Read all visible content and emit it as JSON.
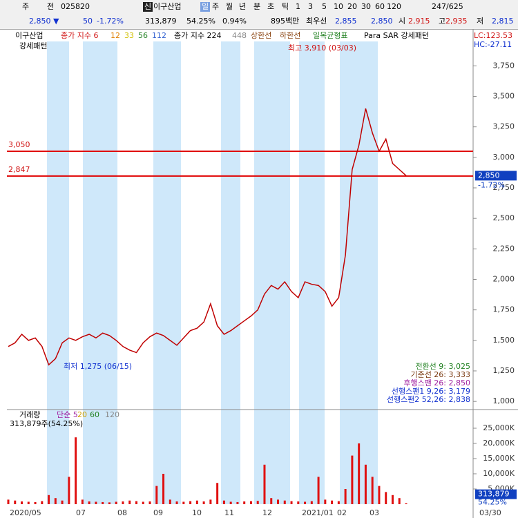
{
  "toolbar": [
    "주",
    "전",
    "025820",
    "신",
    "이구산업",
    "일",
    "주",
    "월",
    "년",
    "분",
    "초",
    "틱",
    "1",
    "3",
    "5",
    "10",
    "20",
    "30",
    "60",
    "120",
    "247/625"
  ],
  "quote": [
    "2,850 ▼",
    "50",
    "-1.72%",
    "313,879",
    "54.25%",
    "0.94%",
    "895백만",
    "최우선",
    "2,855",
    "2,850",
    "시",
    "2,915",
    "고",
    "2,935",
    "저",
    "2,815"
  ],
  "legend": [
    "이구산업",
    "종가 지수 6",
    "12",
    "33",
    "56",
    "112",
    "종가 지수 224",
    "448",
    "상한선",
    "하한선",
    "일목균형표",
    "Para SAR 강세패턴",
    "LC:123.53",
    "HC:-27.11",
    "강세패턴"
  ],
  "dates": [
    "2020/05",
    "07",
    "08",
    "09",
    "10",
    "11",
    "12",
    "2021/01",
    "02",
    "03",
    "03/30"
  ],
  "chart_data": [
    {
      "type": "line",
      "series": [
        {
          "name": "이구산업",
          "color": "#c00000",
          "values": [
            1450,
            1480,
            1550,
            1500,
            1520,
            1450,
            1300,
            1350,
            1480,
            1520,
            1500,
            1530,
            1550,
            1520,
            1560,
            1540,
            1500,
            1450,
            1420,
            1400,
            1480,
            1530,
            1560,
            1540,
            1500,
            1460,
            1520,
            1580,
            1600,
            1650,
            1800,
            1620,
            1550,
            1580,
            1620,
            1660,
            1700,
            1750,
            1880,
            1950,
            1920,
            1980,
            1900,
            1850,
            1980,
            1960,
            1950,
            1900,
            1780,
            1850,
            2200,
            2900,
            3100,
            3400,
            3200,
            3050,
            3150,
            2950,
            2900,
            2850
          ]
        }
      ],
      "ylim": [
        950,
        3950
      ],
      "yticks": [
        {
          "value": 1000,
          "label": "1,000"
        },
        {
          "value": 1250,
          "label": "1,250"
        },
        {
          "value": 1500,
          "label": "1,500"
        },
        {
          "value": 1750,
          "label": "1,750"
        },
        {
          "value": 2000,
          "label": "2,000"
        },
        {
          "value": 2250,
          "label": "2,250"
        },
        {
          "value": 2500,
          "label": "2,500"
        },
        {
          "value": 2750,
          "label": "2,750"
        },
        {
          "value": 3000,
          "label": "3,000"
        },
        {
          "value": 3250,
          "label": "3,250"
        },
        {
          "value": 3500,
          "label": "3,500"
        },
        {
          "value": 3750,
          "label": "3,750"
        }
      ],
      "reference_lines": [
        {
          "value": 3050,
          "label": "3,050"
        },
        {
          "value": 2847,
          "label": "2,847"
        }
      ],
      "current": {
        "value": 2850,
        "label": "2,850"
      },
      "change_label": "-1.72%",
      "annotations": [
        "최고 3,910 (03/03)",
        "최저 1,275 (06/15)"
      ],
      "readouts": [
        "전환선 9: 3,025",
        "기준선 26: 3,333",
        "후행스팬 26: 2,850",
        "선행스팬1 9,26: 3,179",
        "선행스팬2 52,26: 2,838"
      ]
    },
    {
      "type": "bar",
      "series": [
        {
          "name": "거래량",
          "color": "#e01010",
          "values": [
            1500,
            1200,
            900,
            800,
            700,
            1000,
            3000,
            2000,
            1200,
            9000,
            22000,
            1500,
            900,
            800,
            700,
            600,
            800,
            900,
            1200,
            1000,
            800,
            900,
            6000,
            10000,
            1500,
            900,
            800,
            1000,
            1200,
            900,
            1500,
            7000,
            1200,
            800,
            700,
            900,
            1000,
            1100,
            13000,
            2000,
            1500,
            1200,
            1000,
            900,
            800,
            1000,
            9000,
            1500,
            1200,
            1000,
            5000,
            16000,
            20000,
            13000,
            9000,
            6000,
            4000,
            3000,
            2000,
            313.879
          ]
        }
      ],
      "ylim": [
        0,
        30000
      ],
      "yticks": [
        {
          "value": 5000,
          "label": "5,000K"
        },
        {
          "value": 10000,
          "label": "10,000K"
        },
        {
          "value": 15000,
          "label": "15,000K"
        },
        {
          "value": 20000,
          "label": "20,000K"
        },
        {
          "value": 25000,
          "label": "25,000K"
        }
      ],
      "current": {
        "value": 313.879,
        "label": "313,879"
      },
      "current_pct": "54.25%",
      "legend": [
        "단순 5",
        "20",
        "60",
        "120"
      ],
      "summary": "313,879주(54.25%)"
    }
  ]
}
